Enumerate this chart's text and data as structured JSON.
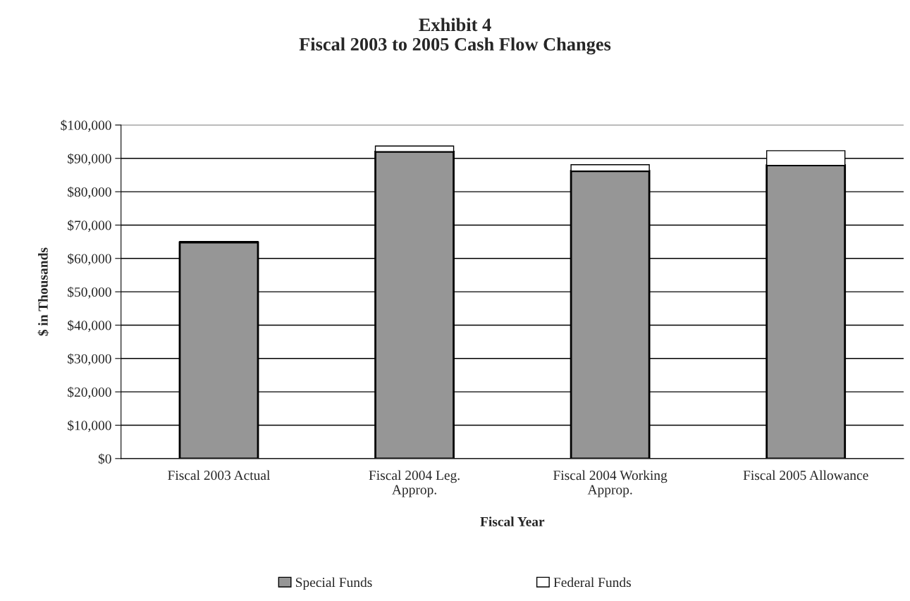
{
  "chart_data": {
    "type": "bar",
    "title": "Exhibit 4\nFiscal 2003 to 2005 Cash Flow Changes",
    "xlabel": "Fiscal Year",
    "ylabel": "$ in Thousands",
    "categories": [
      "Fiscal 2003 Actual",
      "Fiscal 2004 Leg.\nApprop.",
      "Fiscal 2004 Working\nApprop.",
      "Fiscal 2005 Allowance"
    ],
    "series": [
      {
        "name": "Special Funds",
        "color": "#969696",
        "values": [
          64800,
          92000,
          86200,
          87900
        ]
      },
      {
        "name": "Federal Funds",
        "color": "#ffffff",
        "values": [
          300,
          1700,
          1900,
          4400
        ]
      }
    ],
    "stacked": true,
    "ylim": [
      0,
      100000
    ],
    "yticks": [
      {
        "value": 0,
        "label": "$0"
      },
      {
        "value": 10000,
        "label": "$10,000"
      },
      {
        "value": 20000,
        "label": "$20,000"
      },
      {
        "value": 30000,
        "label": "$30,000"
      },
      {
        "value": 40000,
        "label": "$40,000"
      },
      {
        "value": 50000,
        "label": "$50,000"
      },
      {
        "value": 60000,
        "label": "$60,000"
      },
      {
        "value": 70000,
        "label": "$70,000"
      },
      {
        "value": 80000,
        "label": "$80,000"
      },
      {
        "value": 90000,
        "label": "$90,000"
      },
      {
        "value": 100000,
        "label": "$100,000"
      }
    ],
    "grid": "y",
    "legend": "bottom"
  }
}
